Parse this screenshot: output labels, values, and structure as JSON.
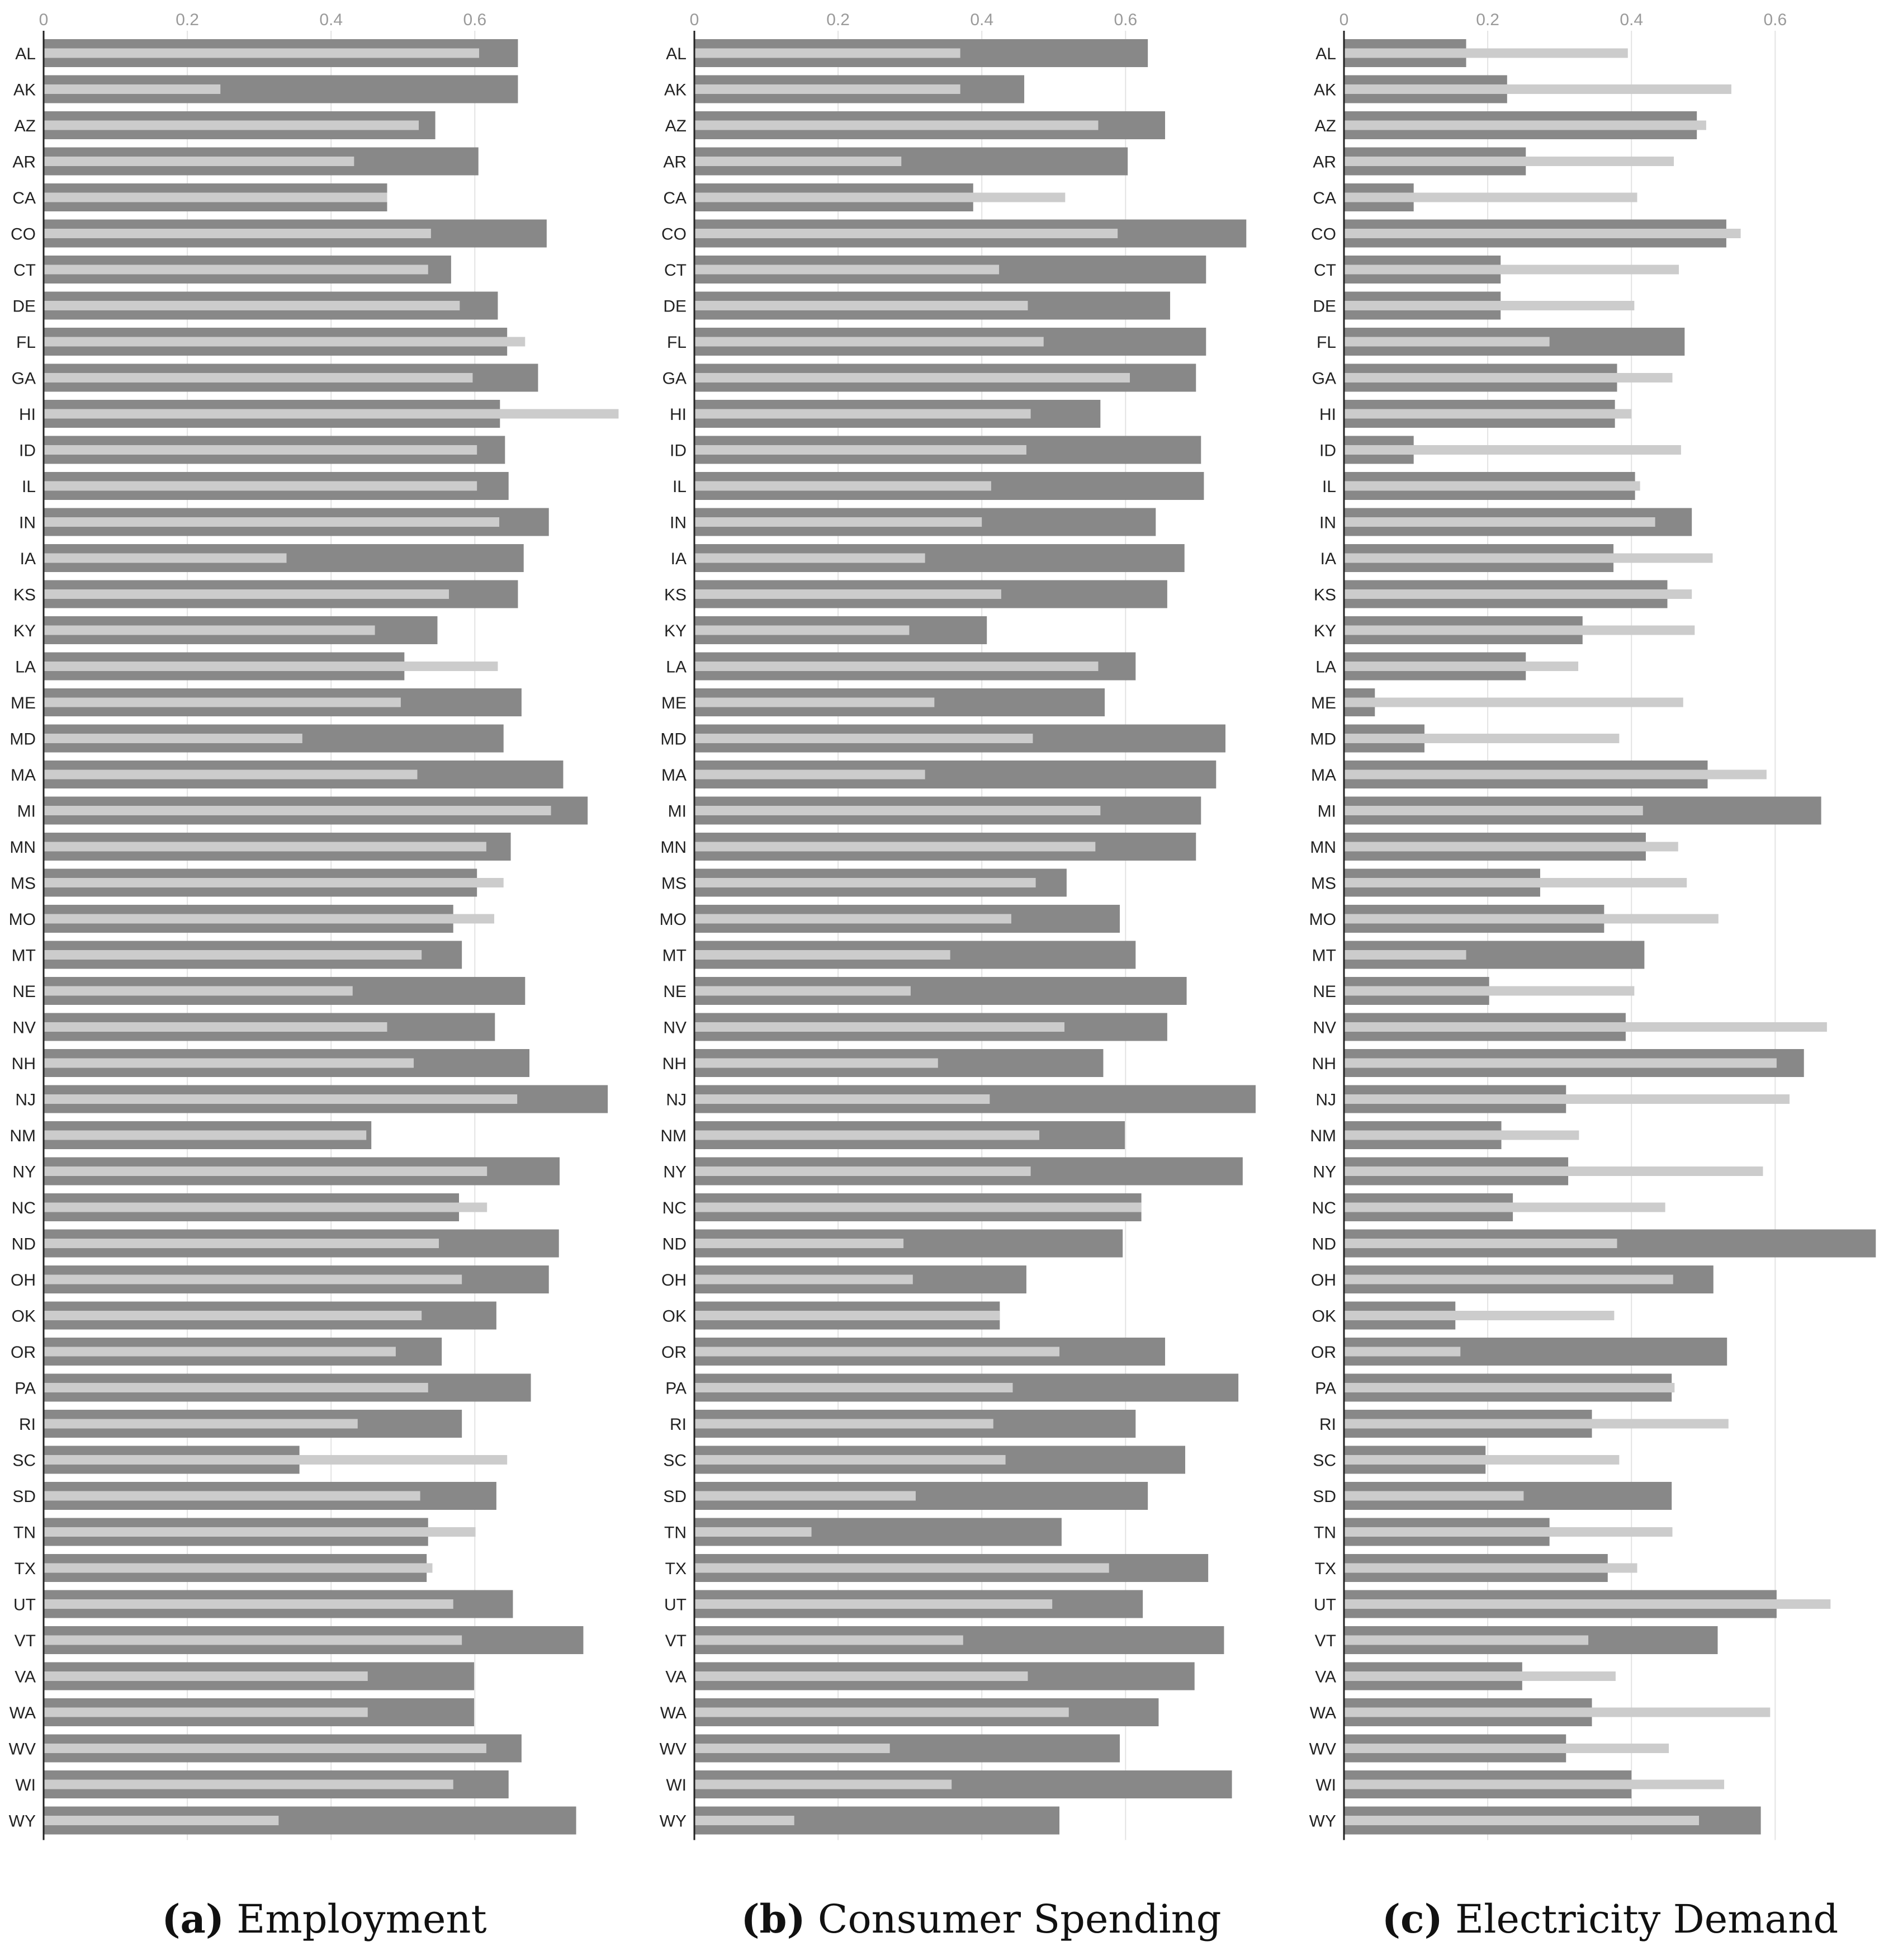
{
  "states": [
    "AL",
    "AK",
    "AZ",
    "AR",
    "CA",
    "CO",
    "CT",
    "DE",
    "FL",
    "GA",
    "HI",
    "ID",
    "IL",
    "IN",
    "IA",
    "KS",
    "KY",
    "LA",
    "ME",
    "MD",
    "MA",
    "MI",
    "MN",
    "MS",
    "MO",
    "MT",
    "NE",
    "NV",
    "NH",
    "NJ",
    "NM",
    "NY",
    "NC",
    "ND",
    "OH",
    "OK",
    "OR",
    "PA",
    "RI",
    "SC",
    "SD",
    "TN",
    "TX",
    "UT",
    "VT",
    "VA",
    "WA",
    "WV",
    "WI",
    "WY"
  ],
  "chart_data": [
    {
      "type": "bar",
      "orientation": "horizontal",
      "caption_letter": "(a)",
      "caption_text": "Employment",
      "x_ticks": [
        0,
        0.2,
        0.4,
        0.6
      ],
      "xlim": [
        0,
        0.76
      ],
      "grid": true,
      "series": [
        {
          "values": [
            0.66,
            0.66,
            0.545,
            0.605,
            0.478,
            0.7,
            0.567,
            0.632,
            0.645,
            0.688,
            0.635,
            0.642,
            0.647,
            0.703,
            0.668,
            0.66,
            0.548,
            0.502,
            0.665,
            0.64,
            0.723,
            0.757,
            0.65,
            0.603,
            0.57,
            0.582,
            0.67,
            0.628,
            0.676,
            0.785,
            0.456,
            0.718,
            0.578,
            0.717,
            0.703,
            0.63,
            0.554,
            0.678,
            0.582,
            0.356,
            0.63,
            0.535,
            0.533,
            0.653,
            0.751,
            0.599,
            0.599,
            0.665,
            0.647,
            0.741
          ],
          "color": "#888888"
        },
        {
          "values": [
            0.606,
            0.246,
            0.522,
            0.432,
            0.478,
            0.539,
            0.535,
            0.579,
            0.67,
            0.597,
            0.8,
            0.603,
            0.603,
            0.634,
            0.338,
            0.564,
            0.461,
            0.632,
            0.497,
            0.36,
            0.52,
            0.706,
            0.616,
            0.64,
            0.627,
            0.526,
            0.43,
            0.478,
            0.515,
            0.659,
            0.449,
            0.617,
            0.617,
            0.55,
            0.582,
            0.526,
            0.49,
            0.535,
            0.437,
            0.645,
            0.524,
            0.601,
            0.541,
            0.57,
            0.582,
            0.451,
            0.451,
            0.616,
            0.57,
            0.327
          ],
          "color": "#cccccc"
        }
      ]
    },
    {
      "type": "bar",
      "orientation": "horizontal",
      "caption_letter": "(b)",
      "caption_text": "Consumer Spending",
      "x_ticks": [
        0,
        0.2,
        0.4,
        0.6
      ],
      "xlim": [
        0,
        0.76
      ],
      "grid": true,
      "series": [
        {
          "values": [
            0.631,
            0.459,
            0.655,
            0.603,
            0.388,
            0.768,
            0.712,
            0.662,
            0.712,
            0.698,
            0.565,
            0.705,
            0.709,
            0.642,
            0.682,
            0.658,
            0.407,
            0.614,
            0.571,
            0.739,
            0.726,
            0.705,
            0.698,
            0.518,
            0.592,
            0.614,
            0.685,
            0.658,
            0.569,
            0.781,
            0.599,
            0.763,
            0.622,
            0.596,
            0.462,
            0.425,
            0.655,
            0.757,
            0.614,
            0.683,
            0.631,
            0.511,
            0.715,
            0.624,
            0.737,
            0.696,
            0.646,
            0.592,
            0.748,
            0.508
          ],
          "color": "#888888"
        },
        {
          "values": [
            0.37,
            0.37,
            0.562,
            0.288,
            0.516,
            0.589,
            0.424,
            0.464,
            0.486,
            0.606,
            0.468,
            0.462,
            0.413,
            0.4,
            0.321,
            0.427,
            0.299,
            0.562,
            0.334,
            0.471,
            0.321,
            0.565,
            0.558,
            0.475,
            0.441,
            0.356,
            0.301,
            0.515,
            0.339,
            0.411,
            0.48,
            0.468,
            0.622,
            0.291,
            0.304,
            0.425,
            0.508,
            0.443,
            0.416,
            0.433,
            0.308,
            0.163,
            0.577,
            0.498,
            0.374,
            0.464,
            0.521,
            0.272,
            0.358,
            0.139
          ],
          "color": "#cccccc"
        }
      ]
    },
    {
      "type": "bar",
      "orientation": "horizontal",
      "caption_letter": "(c)",
      "caption_text": "Electricity Demand",
      "x_ticks": [
        0,
        0.2,
        0.4,
        0.6
      ],
      "xlim": [
        0,
        0.76
      ],
      "grid": true,
      "series": [
        {
          "values": [
            0.17,
            0.227,
            0.491,
            0.253,
            0.097,
            0.532,
            0.218,
            0.218,
            0.474,
            0.38,
            0.377,
            0.097,
            0.405,
            0.484,
            0.375,
            0.45,
            0.332,
            0.253,
            0.043,
            0.112,
            0.506,
            0.664,
            0.42,
            0.273,
            0.362,
            0.418,
            0.202,
            0.392,
            0.64,
            0.309,
            0.219,
            0.312,
            0.235,
            0.74,
            0.514,
            0.155,
            0.533,
            0.456,
            0.345,
            0.197,
            0.456,
            0.286,
            0.367,
            0.602,
            0.52,
            0.248,
            0.345,
            0.309,
            0.4,
            0.58
          ],
          "color": "#888888"
        },
        {
          "values": [
            0.395,
            0.539,
            0.504,
            0.459,
            0.408,
            0.552,
            0.466,
            0.404,
            0.286,
            0.457,
            0.4,
            0.469,
            0.412,
            0.433,
            0.513,
            0.484,
            0.488,
            0.326,
            0.472,
            0.383,
            0.588,
            0.416,
            0.465,
            0.477,
            0.521,
            0.17,
            0.404,
            0.672,
            0.602,
            0.62,
            0.327,
            0.583,
            0.447,
            0.38,
            0.458,
            0.376,
            0.162,
            0.46,
            0.535,
            0.383,
            0.25,
            0.457,
            0.408,
            0.677,
            0.34,
            0.378,
            0.593,
            0.452,
            0.529,
            0.494
          ],
          "color": "#cccccc"
        }
      ]
    }
  ]
}
